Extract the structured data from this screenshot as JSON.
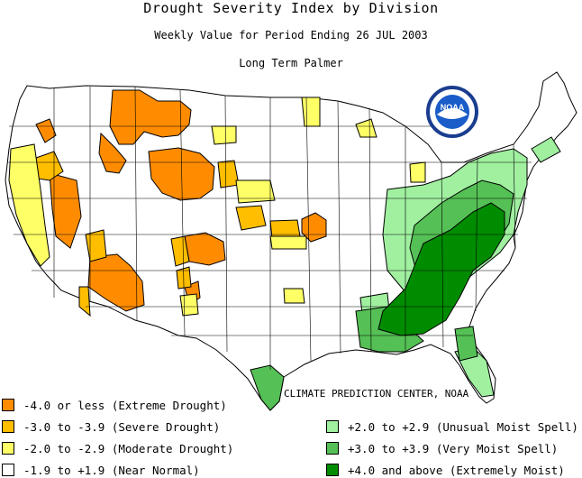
{
  "title": "Drought Severity Index by Division",
  "subtitle": "Weekly Value for Period Ending 26 JUL 2003",
  "index_name": "Long Term Palmer",
  "logo_text": "NOAA",
  "credit": "CLIMATE PREDICTION CENTER, NOAA",
  "colors": {
    "extreme_drought": "#ff8c00",
    "severe_drought": "#ffbe00",
    "moderate_drought": "#ffff66",
    "near_normal": "#ffffff",
    "unusual_moist": "#a0f0a0",
    "very_moist": "#55c055",
    "extremely_moist": "#008c00",
    "boundary": "#000000"
  },
  "legend": [
    {
      "label": "-4.0 or less (Extreme Drought)",
      "color": "#ff8c00"
    },
    {
      "label": "-3.0 to -3.9 (Severe Drought)",
      "color": "#ffbe00"
    },
    {
      "label": "-2.0 to -2.9 (Moderate Drought)",
      "color": "#ffff66"
    },
    {
      "label": "-1.9 to +1.9 (Near Normal)",
      "color": "#ffffff"
    },
    {
      "label": "+2.0 to +2.9 (Unusual Moist Spell)",
      "color": "#a0f0a0"
    },
    {
      "label": "+3.0 to +3.9 (Very Moist Spell)",
      "color": "#55c055"
    },
    {
      "label": "+4.0 and above (Extremely Moist)",
      "color": "#008c00"
    }
  ]
}
